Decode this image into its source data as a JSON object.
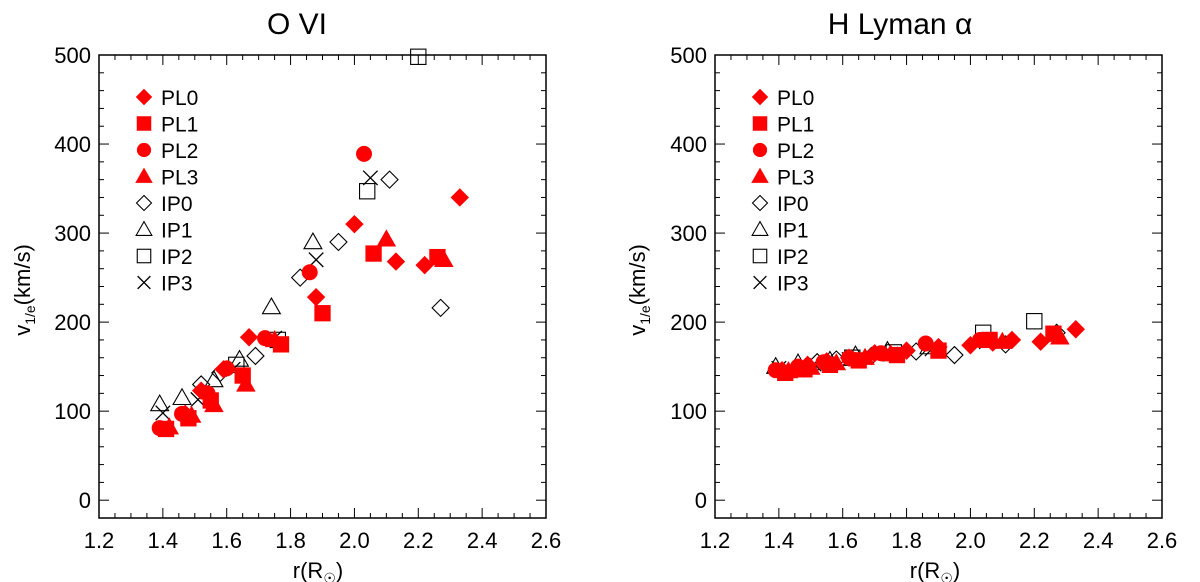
{
  "chart_data": [
    {
      "type": "scatter",
      "title": "O VI",
      "xlabel": "r(R☉)",
      "xlabel_main": "r(R",
      "xlabel_sub": "☉",
      "xlabel_tail": ")",
      "ylabel_main": "v",
      "ylabel_sub": "1/e",
      "ylabel_tail": "(km/s)",
      "xlim": [
        1.2,
        2.6
      ],
      "ylim": [
        -20,
        500
      ],
      "xticks": [
        "1.2",
        "1.4",
        "1.6",
        "1.8",
        "2.0",
        "2.2",
        "2.4",
        "2.6"
      ],
      "yticks": [
        "0",
        "100",
        "200",
        "300",
        "400",
        "500"
      ],
      "series": [
        {
          "name": "PL0",
          "marker": "diamond",
          "fill": "#ff0000",
          "points": [
            [
              1.47,
              97
            ],
            [
              1.52,
              123
            ],
            [
              1.59,
              147
            ],
            [
              1.67,
              183
            ],
            [
              1.88,
              228
            ],
            [
              2.0,
              310
            ],
            [
              2.13,
              268
            ],
            [
              2.22,
              264
            ],
            [
              2.33,
              340
            ]
          ]
        },
        {
          "name": "PL1",
          "marker": "square",
          "fill": "#ff0000",
          "points": [
            [
              1.41,
              80
            ],
            [
              1.48,
              92
            ],
            [
              1.55,
              112
            ],
            [
              1.65,
              140
            ],
            [
              1.77,
              175
            ],
            [
              1.9,
              210
            ],
            [
              2.06,
              277
            ],
            [
              2.26,
              273
            ]
          ]
        },
        {
          "name": "PL2",
          "marker": "circle",
          "fill": "#ff0000",
          "points": [
            [
              1.39,
              81
            ],
            [
              1.46,
              97
            ],
            [
              1.54,
              120
            ],
            [
              1.6,
              148
            ],
            [
              1.72,
              182
            ],
            [
              1.86,
              256
            ],
            [
              2.03,
              389
            ]
          ]
        },
        {
          "name": "PL3",
          "marker": "triangle",
          "fill": "#ff0000",
          "points": [
            [
              1.42,
              82
            ],
            [
              1.49,
              95
            ],
            [
              1.56,
              107
            ],
            [
              1.66,
              130
            ],
            [
              1.75,
              180
            ],
            [
              2.1,
              293
            ],
            [
              2.28,
              270
            ]
          ]
        },
        {
          "name": "IP0",
          "marker": "diamond",
          "fill": "none",
          "points": [
            [
              1.52,
              130
            ],
            [
              1.58,
              143
            ],
            [
              1.69,
              162
            ],
            [
              1.83,
              250
            ],
            [
              1.95,
              290
            ],
            [
              2.11,
              360
            ],
            [
              2.27,
              216
            ]
          ]
        },
        {
          "name": "IP1",
          "marker": "triangle",
          "fill": "none",
          "points": [
            [
              1.39,
              108
            ],
            [
              1.46,
              115
            ],
            [
              1.56,
              135
            ],
            [
              1.64,
              158
            ],
            [
              1.74,
              217
            ],
            [
              1.87,
              290
            ]
          ]
        },
        {
          "name": "IP2",
          "marker": "square",
          "fill": "none",
          "points": [
            [
              1.63,
              152
            ],
            [
              1.76,
              180
            ],
            [
              2.04,
              347
            ],
            [
              2.2,
              498
            ]
          ]
        },
        {
          "name": "IP3",
          "marker": "x",
          "fill": "none",
          "points": [
            [
              1.4,
              98
            ],
            [
              1.51,
              113
            ],
            [
              1.62,
              147
            ],
            [
              1.75,
              182
            ],
            [
              1.88,
              270
            ],
            [
              2.05,
              362
            ]
          ]
        }
      ]
    },
    {
      "type": "scatter",
      "title": "H Lyman α",
      "xlabel": "r(R☉)",
      "xlabel_main": "r(R",
      "xlabel_sub": "☉",
      "xlabel_tail": ")",
      "ylabel_main": "v",
      "ylabel_sub": "1/e",
      "ylabel_tail": "(km/s)",
      "xlim": [
        1.2,
        2.6
      ],
      "ylim": [
        -20,
        500
      ],
      "xticks": [
        "1.2",
        "1.4",
        "1.6",
        "1.8",
        "2.0",
        "2.2",
        "2.4",
        "2.6"
      ],
      "yticks": [
        "0",
        "100",
        "200",
        "300",
        "400",
        "500"
      ],
      "series": [
        {
          "name": "PL0",
          "marker": "diamond",
          "fill": "#ff0000",
          "points": [
            [
              1.41,
              146
            ],
            [
              1.49,
              152
            ],
            [
              1.55,
              156
            ],
            [
              1.62,
              160
            ],
            [
              1.7,
              165
            ],
            [
              1.8,
              168
            ],
            [
              1.9,
              172
            ],
            [
              2.0,
              174
            ],
            [
              2.07,
              177
            ],
            [
              2.13,
              180
            ],
            [
              2.22,
              178
            ],
            [
              2.33,
              192
            ]
          ]
        },
        {
          "name": "PL1",
          "marker": "square",
          "fill": "#ff0000",
          "points": [
            [
              1.42,
              143
            ],
            [
              1.48,
              147
            ],
            [
              1.56,
              152
            ],
            [
              1.65,
              157
            ],
            [
              1.77,
              163
            ],
            [
              1.9,
              168
            ],
            [
              2.06,
              180
            ],
            [
              2.26,
              187
            ]
          ]
        },
        {
          "name": "PL2",
          "marker": "circle",
          "fill": "#ff0000",
          "points": [
            [
              1.39,
              146
            ],
            [
              1.46,
              150
            ],
            [
              1.54,
              155
            ],
            [
              1.62,
              160
            ],
            [
              1.72,
              165
            ],
            [
              1.86,
              176
            ],
            [
              2.03,
              180
            ]
          ]
        },
        {
          "name": "PL3",
          "marker": "triangle",
          "fill": "#ff0000",
          "points": [
            [
              1.43,
              145
            ],
            [
              1.5,
              149
            ],
            [
              1.58,
              154
            ],
            [
              1.67,
              160
            ],
            [
              1.75,
              164
            ],
            [
              2.1,
              178
            ],
            [
              2.28,
              183
            ]
          ]
        },
        {
          "name": "IP0",
          "marker": "diamond",
          "fill": "none",
          "points": [
            [
              1.52,
              155
            ],
            [
              1.58,
              158
            ],
            [
              1.69,
              162
            ],
            [
              1.83,
              167
            ],
            [
              1.95,
              163
            ],
            [
              2.11,
              175
            ],
            [
              2.27,
              188
            ]
          ]
        },
        {
          "name": "IP1",
          "marker": "triangle",
          "fill": "none",
          "points": [
            [
              1.39,
              150
            ],
            [
              1.46,
              154
            ],
            [
              1.56,
              157
            ],
            [
              1.64,
              163
            ],
            [
              1.74,
              168
            ],
            [
              1.87,
              172
            ]
          ]
        },
        {
          "name": "IP2",
          "marker": "square",
          "fill": "none",
          "points": [
            [
              1.63,
              160
            ],
            [
              1.76,
              166
            ],
            [
              2.04,
              188
            ],
            [
              2.2,
              201
            ]
          ]
        },
        {
          "name": "IP3",
          "marker": "x",
          "fill": "none",
          "points": [
            [
              1.4,
              148
            ],
            [
              1.51,
              153
            ],
            [
              1.62,
              158
            ],
            [
              1.75,
              164
            ],
            [
              1.88,
              170
            ],
            [
              2.05,
              178
            ]
          ]
        }
      ]
    }
  ]
}
